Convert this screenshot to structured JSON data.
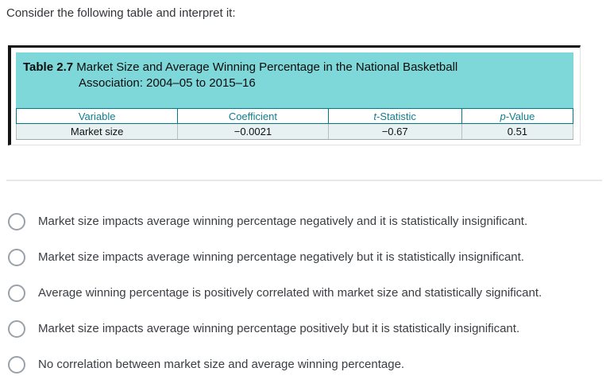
{
  "question": "Consider the following table and interpret it:",
  "figure": {
    "title_label": "Table 2.7",
    "title_rest": " Market Size and Average Winning Percentage in the National Basketball",
    "title_line2": "Association: 2004–05 to 2015–16",
    "table": {
      "headers": [
        {
          "text": "Variable",
          "italic_first": false
        },
        {
          "text": "Coefficient",
          "italic_first": false
        },
        {
          "text": "t-Statistic",
          "italic_first": true
        },
        {
          "text": "p-Value",
          "italic_first": true
        }
      ],
      "rows": [
        [
          "Market size",
          "−0.0021",
          "−0.67",
          "0.51"
        ]
      ],
      "col_widths": [
        "29%",
        "27%",
        "24%",
        "20%"
      ]
    }
  },
  "options": [
    "Market size impacts average winning percentage negatively and it is statistically insignificant.",
    "Market size impacts average winning percentage negatively but it is statistically insignificant.",
    "Average winning percentage is positively correlated with market size and statistically significant.",
    "Market size impacts average winning percentage positively but it is statistically insignificant.",
    "No correlation between market size and average winning percentage."
  ],
  "colors": {
    "banner_teal": "#7ed8da",
    "header_text": "#0f7f8f",
    "table_border": "#00798c",
    "row_bg": "#e8f1f1",
    "frame_black": "#141414"
  },
  "chart_data": {
    "type": "table",
    "title": "Table 2.7 Market Size and Average Winning Percentage in the National Basketball Association: 2004–05 to 2015–16",
    "columns": [
      "Variable",
      "Coefficient",
      "t-Statistic",
      "p-Value"
    ],
    "rows": [
      [
        "Market size",
        -0.0021,
        -0.67,
        0.51
      ]
    ]
  }
}
